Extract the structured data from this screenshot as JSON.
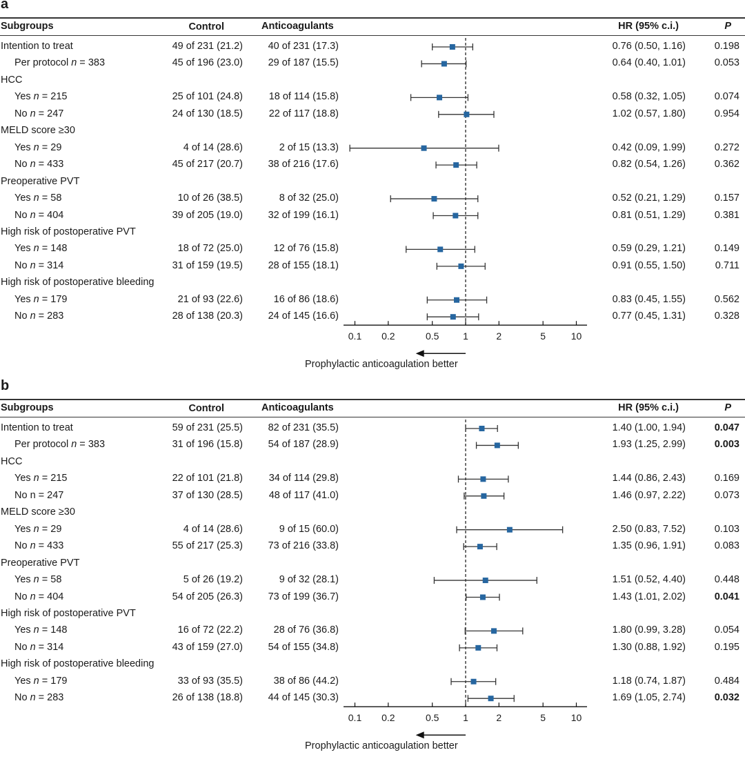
{
  "chart_data": [
    {
      "type": "forest",
      "panel_label": "a",
      "columns": {
        "subgroups": "Subgroups",
        "control": "Control",
        "anticoagulants": "Anticoagulants",
        "hr": "HR (95% c.i.)",
        "p": "P"
      },
      "xscale": "log",
      "xlim": [
        0.08,
        12
      ],
      "xticks": [
        0.1,
        0.2,
        0.5,
        1,
        2,
        5,
        10
      ],
      "xtick_labels": [
        "0.1",
        "0.2",
        "0.5",
        "1",
        "2",
        "5",
        "10"
      ],
      "reference_line": 1,
      "direction_label": "Prophylactic anticoagulation better",
      "direction_arrow": "left",
      "marker_color": "#2666a0",
      "rows": [
        {
          "label": "Intention to treat",
          "n": "",
          "indent": false,
          "control": "49 of 231 (21.2)",
          "anticoagulants": "40 of 231 (17.3)",
          "hr": 0.76,
          "lo": 0.5,
          "hi": 1.16,
          "hr_text": "0.76 (0.50, 1.16)",
          "p": "0.198",
          "p_bold": false
        },
        {
          "label": "Per protocol",
          "n": "383",
          "indent": true,
          "control": "45 of 196 (23.0)",
          "anticoagulants": "29 of 187 (15.5)",
          "hr": 0.64,
          "lo": 0.4,
          "hi": 1.01,
          "hr_text": "0.64 (0.40, 1.01)",
          "p": "0.053",
          "p_bold": false
        },
        {
          "label": "HCC",
          "header": true
        },
        {
          "label": "Yes",
          "n": "215",
          "indent": true,
          "control": "25 of 101 (24.8)",
          "anticoagulants": "18 of 114 (15.8)",
          "hr": 0.58,
          "lo": 0.32,
          "hi": 1.05,
          "hr_text": "0.58 (0.32, 1.05)",
          "p": "0.074",
          "p_bold": false
        },
        {
          "label": "No",
          "n": "247",
          "indent": true,
          "control": "24 of 130 (18.5)",
          "anticoagulants": "22 of 117 (18.8)",
          "hr": 1.02,
          "lo": 0.57,
          "hi": 1.8,
          "hr_text": "1.02 (0.57, 1.80)",
          "p": "0.954",
          "p_bold": false
        },
        {
          "label": "MELD score ≥30",
          "header": true
        },
        {
          "label": "Yes",
          "n": "29",
          "indent": true,
          "control": "4 of 14 (28.6)",
          "anticoagulants": "2 of 15 (13.3)",
          "hr": 0.42,
          "lo": 0.09,
          "hi": 1.99,
          "hr_text": "0.42 (0.09, 1.99)",
          "p": "0.272",
          "p_bold": false
        },
        {
          "label": "No",
          "n": "433",
          "indent": true,
          "control": "45 of 217 (20.7)",
          "anticoagulants": "38 of 216 (17.6)",
          "hr": 0.82,
          "lo": 0.54,
          "hi": 1.26,
          "hr_text": "0.82 (0.54, 1.26)",
          "p": "0.362",
          "p_bold": false
        },
        {
          "label": "Preoperative PVT",
          "header": true
        },
        {
          "label": "Yes",
          "n": "58",
          "indent": true,
          "control": "10 of 26 (38.5)",
          "anticoagulants": "8 of 32 (25.0)",
          "hr": 0.52,
          "lo": 0.21,
          "hi": 1.29,
          "hr_text": "0.52 (0.21, 1.29)",
          "p": "0.157",
          "p_bold": false
        },
        {
          "label": "No",
          "n": "404",
          "indent": true,
          "control": "39 of 205 (19.0)",
          "anticoagulants": "32 of 199 (16.1)",
          "hr": 0.81,
          "lo": 0.51,
          "hi": 1.29,
          "hr_text": "0.81 (0.51, 1.29)",
          "p": "0.381",
          "p_bold": false
        },
        {
          "label": "High risk of postoperative PVT",
          "header": true
        },
        {
          "label": "Yes",
          "n": "148",
          "indent": true,
          "control": "18 of 72 (25.0)",
          "anticoagulants": "12 of 76 (15.8)",
          "hr": 0.59,
          "lo": 0.29,
          "hi": 1.21,
          "hr_text": "0.59 (0.29, 1.21)",
          "p": "0.149",
          "p_bold": false
        },
        {
          "label": "No",
          "n": "314",
          "indent": true,
          "control": "31 of 159 (19.5)",
          "anticoagulants": "28 of 155 (18.1)",
          "hr": 0.91,
          "lo": 0.55,
          "hi": 1.5,
          "hr_text": "0.91 (0.55, 1.50)",
          "p": "0.711",
          "p_bold": false
        },
        {
          "label": "High risk of postoperative bleeding",
          "header": true
        },
        {
          "label": "Yes",
          "n": "179",
          "indent": true,
          "control": "21 of 93 (22.6)",
          "anticoagulants": "16 of 86 (18.6)",
          "hr": 0.83,
          "lo": 0.45,
          "hi": 1.55,
          "hr_text": "0.83 (0.45, 1.55)",
          "p": "0.562",
          "p_bold": false
        },
        {
          "label": "No",
          "n": "283",
          "indent": true,
          "control": "28 of 138 (20.3)",
          "anticoagulants": "24 of 145 (16.6)",
          "hr": 0.77,
          "lo": 0.45,
          "hi": 1.31,
          "hr_text": "0.77 (0.45, 1.31)",
          "p": "0.328",
          "p_bold": false
        }
      ]
    },
    {
      "type": "forest",
      "panel_label": "b",
      "columns": {
        "subgroups": "Subgroups",
        "control": "Control",
        "anticoagulants": "Anticoagulants",
        "hr": "HR (95% c.i.)",
        "p": "P"
      },
      "xscale": "log",
      "xlim": [
        0.08,
        12
      ],
      "xticks": [
        0.1,
        0.2,
        0.5,
        1,
        2,
        5,
        10
      ],
      "xtick_labels": [
        "0.1",
        "0.2",
        "0.5",
        "1",
        "2",
        "5",
        "10"
      ],
      "reference_line": 1,
      "direction_label": "Prophylactic anticoagulation better",
      "direction_arrow": "left",
      "marker_color": "#2666a0",
      "rows": [
        {
          "label": "Intention to treat",
          "n": "",
          "indent": false,
          "control": "59 of 231 (25.5)",
          "anticoagulants": "82 of 231 (35.5)",
          "hr": 1.4,
          "lo": 1.0,
          "hi": 1.94,
          "hr_text": "1.40 (1.00, 1.94)",
          "p": "0.047",
          "p_bold": true
        },
        {
          "label": "Per protocol",
          "n": "383",
          "indent": true,
          "control": "31 of 196 (15.8)",
          "anticoagulants": "54 of 187 (28.9)",
          "hr": 1.93,
          "lo": 1.25,
          "hi": 2.99,
          "hr_text": "1.93 (1.25, 2.99)",
          "p": "0.003",
          "p_bold": true
        },
        {
          "label": "HCC",
          "header": true
        },
        {
          "label": "Yes",
          "n": "215",
          "indent": true,
          "control": "22 of 101 (21.8)",
          "anticoagulants": "34 of 114 (29.8)",
          "hr": 1.44,
          "lo": 0.86,
          "hi": 2.43,
          "hr_text": "1.44 (0.86, 2.43)",
          "p": "0.169",
          "p_bold": false
        },
        {
          "label": "No",
          "n": "247",
          "indent": true,
          "n_plain": true,
          "control": "37 of 130 (28.5)",
          "anticoagulants": "48 of 117 (41.0)",
          "hr": 1.46,
          "lo": 0.97,
          "hi": 2.22,
          "hr_text": "1.46 (0.97, 2.22)",
          "p": "0.073",
          "p_bold": false
        },
        {
          "label": "MELD score ≥30",
          "header": true
        },
        {
          "label": "Yes",
          "n": "29",
          "indent": true,
          "control": "4 of 14 (28.6)",
          "anticoagulants": "9 of 15 (60.0)",
          "hr": 2.5,
          "lo": 0.83,
          "hi": 7.52,
          "hr_text": "2.50 (0.83, 7.52)",
          "p": "0.103",
          "p_bold": false
        },
        {
          "label": "No",
          "n": "433",
          "indent": true,
          "control": "55 of 217 (25.3)",
          "anticoagulants": "73 of 216 (33.8)",
          "hr": 1.35,
          "lo": 0.96,
          "hi": 1.91,
          "hr_text": "1.35 (0.96, 1.91)",
          "p": "0.083",
          "p_bold": false
        },
        {
          "label": "Preoperative PVT",
          "header": true
        },
        {
          "label": "Yes",
          "n": "58",
          "indent": true,
          "control": "5 of 26 (19.2)",
          "anticoagulants": "9 of 32 (28.1)",
          "hr": 1.51,
          "lo": 0.52,
          "hi": 4.4,
          "hr_text": "1.51 (0.52, 4.40)",
          "p": "0.448",
          "p_bold": false
        },
        {
          "label": "No",
          "n": "404",
          "indent": true,
          "control": "54 of 205 (26.3)",
          "anticoagulants": "73 of 199 (36.7)",
          "hr": 1.43,
          "lo": 1.01,
          "hi": 2.02,
          "hr_text": "1.43 (1.01, 2.02)",
          "p": "0.041",
          "p_bold": true
        },
        {
          "label": "High risk of postoperative PVT",
          "header": true
        },
        {
          "label": "Yes",
          "n": "148",
          "indent": true,
          "control": "16 of 72 (22.2)",
          "anticoagulants": "28 of 76 (36.8)",
          "hr": 1.8,
          "lo": 0.99,
          "hi": 3.28,
          "hr_text": "1.80 (0.99, 3.28)",
          "p": "0.054",
          "p_bold": false
        },
        {
          "label": "No",
          "n": "314",
          "indent": true,
          "control": "43 of 159 (27.0)",
          "anticoagulants": "54 of 155 (34.8)",
          "hr": 1.3,
          "lo": 0.88,
          "hi": 1.92,
          "hr_text": "1.30 (0.88, 1.92)",
          "p": "0.195",
          "p_bold": false
        },
        {
          "label": "High risk of postoperative bleeding",
          "header": true
        },
        {
          "label": "Yes",
          "n": "179",
          "indent": true,
          "control": "33 of 93 (35.5)",
          "anticoagulants": "38 of 86 (44.2)",
          "hr": 1.18,
          "lo": 0.74,
          "hi": 1.87,
          "hr_text": "1.18 (0.74, 1.87)",
          "p": "0.484",
          "p_bold": false
        },
        {
          "label": "No",
          "n": "283",
          "indent": true,
          "control": "26 of 138 (18.8)",
          "anticoagulants": "44 of 145 (30.3)",
          "hr": 1.69,
          "lo": 1.05,
          "hi": 2.74,
          "hr_text": "1.69 (1.05, 2.74)",
          "p": "0.032",
          "p_bold": true
        }
      ]
    }
  ]
}
